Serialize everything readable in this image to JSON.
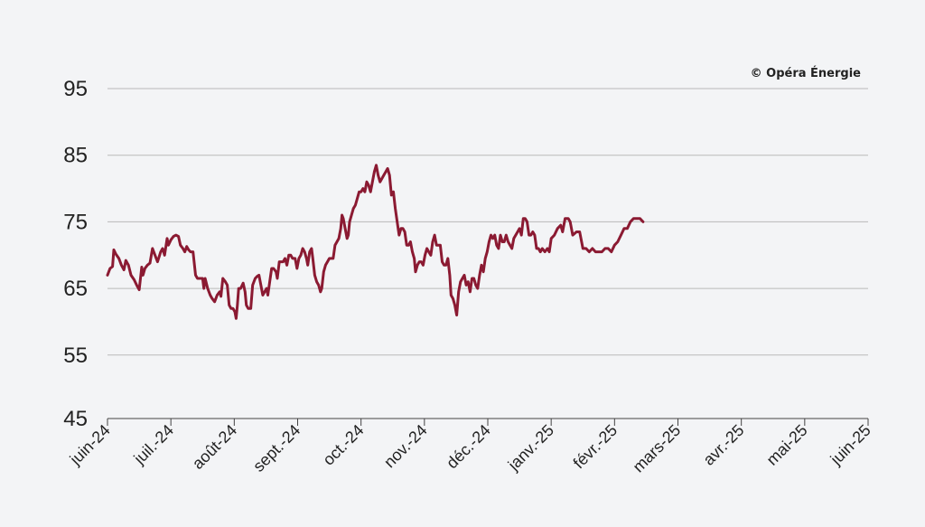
{
  "chart_data": {
    "type": "line",
    "credit": "© Opéra Énergie",
    "title": "",
    "xlabel": "",
    "ylabel": "",
    "ylim": [
      45,
      100
    ],
    "yticks": [
      95,
      85,
      75,
      65,
      55,
      45
    ],
    "grid": true,
    "x_ticks": [
      "juin-24",
      "juil.-24",
      "août-24",
      "sept.-24",
      "oct.-24",
      "nov.-24",
      "déc.-24",
      "janv.-25",
      "févr.-25",
      "mars-25",
      "avr.-25",
      "mai-25",
      "juin-25"
    ],
    "color": "#8b1a32",
    "series": [
      {
        "values": [
          [
            0,
            67.0
          ],
          [
            0.04,
            68.0
          ],
          [
            0.08,
            68.3
          ],
          [
            0.1,
            70.8
          ],
          [
            0.13,
            70.2
          ],
          [
            0.18,
            69.5
          ],
          [
            0.22,
            68.5
          ],
          [
            0.26,
            67.8
          ],
          [
            0.29,
            69.2
          ],
          [
            0.33,
            68.5
          ],
          [
            0.37,
            67.0
          ],
          [
            0.42,
            66.3
          ],
          [
            0.46,
            65.5
          ],
          [
            0.5,
            64.8
          ],
          [
            0.54,
            68.2
          ],
          [
            0.56,
            67.0
          ],
          [
            0.59,
            68.0
          ],
          [
            0.63,
            68.5
          ],
          [
            0.67,
            68.8
          ],
          [
            0.71,
            71.0
          ],
          [
            0.75,
            70.0
          ],
          [
            0.79,
            69.0
          ],
          [
            0.84,
            70.5
          ],
          [
            0.87,
            71.0
          ],
          [
            0.9,
            70.0
          ],
          [
            0.94,
            72.5
          ],
          [
            0.96,
            71.5
          ],
          [
            1.0,
            72.3
          ],
          [
            1.04,
            72.8
          ],
          [
            1.08,
            73.0
          ],
          [
            1.12,
            72.8
          ],
          [
            1.15,
            71.5
          ],
          [
            1.19,
            71.0
          ],
          [
            1.22,
            70.5
          ],
          [
            1.25,
            71.3
          ],
          [
            1.28,
            70.8
          ],
          [
            1.31,
            70.5
          ],
          [
            1.35,
            70.5
          ],
          [
            1.39,
            67.0
          ],
          [
            1.42,
            66.5
          ],
          [
            1.46,
            66.5
          ],
          [
            1.5,
            66.5
          ],
          [
            1.52,
            65.0
          ],
          [
            1.54,
            66.5
          ],
          [
            1.58,
            65.0
          ],
          [
            1.62,
            64.0
          ],
          [
            1.65,
            63.5
          ],
          [
            1.69,
            63.0
          ],
          [
            1.73,
            64.0
          ],
          [
            1.77,
            64.5
          ],
          [
            1.79,
            63.8
          ],
          [
            1.82,
            66.5
          ],
          [
            1.86,
            66.0
          ],
          [
            1.89,
            65.5
          ],
          [
            1.92,
            62.5
          ],
          [
            1.95,
            62.0
          ],
          [
            1.98,
            62.0
          ],
          [
            2.01,
            61.5
          ],
          [
            2.03,
            60.5
          ],
          [
            2.05,
            62.5
          ],
          [
            2.07,
            65.0
          ],
          [
            2.1,
            65.0
          ],
          [
            2.14,
            65.8
          ],
          [
            2.17,
            64.5
          ],
          [
            2.19,
            62.5
          ],
          [
            2.22,
            62.0
          ],
          [
            2.26,
            62.0
          ],
          [
            2.29,
            65.5
          ],
          [
            2.33,
            66.5
          ],
          [
            2.36,
            66.8
          ],
          [
            2.39,
            67.0
          ],
          [
            2.42,
            65.5
          ],
          [
            2.45,
            64.0
          ],
          [
            2.48,
            64.5
          ],
          [
            2.51,
            65.0
          ],
          [
            2.53,
            64.0
          ],
          [
            2.56,
            66.0
          ],
          [
            2.59,
            68.0
          ],
          [
            2.62,
            68.0
          ],
          [
            2.66,
            67.5
          ],
          [
            2.68,
            66.5
          ],
          [
            2.71,
            69.0
          ],
          [
            2.74,
            69.0
          ],
          [
            2.77,
            69.0
          ],
          [
            2.8,
            69.5
          ],
          [
            2.83,
            68.5
          ],
          [
            2.86,
            70.0
          ],
          [
            2.89,
            70.0
          ],
          [
            2.92,
            69.5
          ],
          [
            2.96,
            69.5
          ],
          [
            2.99,
            68.0
          ],
          [
            3.02,
            69.5
          ],
          [
            3.05,
            70.0
          ],
          [
            3.08,
            71.0
          ],
          [
            3.11,
            70.5
          ],
          [
            3.14,
            69.5
          ],
          [
            3.16,
            68.5
          ],
          [
            3.19,
            70.5
          ],
          [
            3.22,
            71.0
          ],
          [
            3.24,
            69.5
          ],
          [
            3.27,
            67.0
          ],
          [
            3.3,
            66.0
          ],
          [
            3.33,
            65.5
          ],
          [
            3.36,
            64.5
          ],
          [
            3.38,
            65.0
          ],
          [
            3.41,
            67.5
          ],
          [
            3.44,
            68.5
          ],
          [
            3.47,
            69.0
          ],
          [
            3.5,
            69.5
          ],
          [
            3.53,
            69.5
          ],
          [
            3.56,
            69.5
          ],
          [
            3.59,
            71.5
          ],
          [
            3.62,
            72.0
          ],
          [
            3.65,
            72.5
          ],
          [
            3.68,
            74.0
          ],
          [
            3.7,
            76.0
          ],
          [
            3.72,
            75.5
          ],
          [
            3.75,
            74.0
          ],
          [
            3.78,
            72.5
          ],
          [
            3.8,
            73.0
          ],
          [
            3.82,
            75.0
          ],
          [
            3.85,
            76.0
          ],
          [
            3.88,
            77.0
          ],
          [
            3.91,
            77.5
          ],
          [
            3.94,
            78.5
          ],
          [
            3.97,
            79.5
          ],
          [
            4.0,
            79.5
          ],
          [
            4.03,
            80.0
          ],
          [
            4.06,
            79.5
          ],
          [
            4.09,
            81.0
          ],
          [
            4.12,
            80.5
          ],
          [
            4.15,
            79.5
          ],
          [
            4.18,
            81.0
          ],
          [
            4.21,
            82.5
          ],
          [
            4.24,
            83.5
          ],
          [
            4.27,
            82.0
          ],
          [
            4.3,
            81.0
          ],
          [
            4.33,
            81.5
          ],
          [
            4.36,
            82.0
          ],
          [
            4.39,
            82.5
          ],
          [
            4.42,
            83.0
          ],
          [
            4.45,
            82.0
          ],
          [
            4.48,
            79.0
          ],
          [
            4.51,
            79.5
          ],
          [
            4.54,
            77.0
          ],
          [
            4.57,
            75.0
          ],
          [
            4.6,
            73.0
          ],
          [
            4.63,
            74.0
          ],
          [
            4.66,
            74.0
          ],
          [
            4.69,
            73.5
          ],
          [
            4.72,
            71.5
          ],
          [
            4.75,
            71.5
          ],
          [
            4.78,
            72.0
          ],
          [
            4.81,
            70.5
          ],
          [
            4.84,
            69.5
          ],
          [
            4.86,
            67.5
          ],
          [
            4.89,
            68.5
          ],
          [
            4.92,
            69.0
          ],
          [
            4.95,
            69.0
          ],
          [
            4.98,
            68.5
          ],
          [
            5.01,
            70.0
          ],
          [
            5.04,
            71.0
          ],
          [
            5.07,
            70.5
          ],
          [
            5.1,
            70.0
          ],
          [
            5.13,
            72.0
          ],
          [
            5.16,
            73.0
          ],
          [
            5.19,
            71.5
          ],
          [
            5.22,
            71.5
          ],
          [
            5.25,
            71.5
          ],
          [
            5.28,
            69.0
          ],
          [
            5.31,
            68.5
          ],
          [
            5.34,
            68.5
          ],
          [
            5.37,
            69.5
          ],
          [
            5.4,
            67.0
          ],
          [
            5.42,
            64.0
          ],
          [
            5.45,
            63.5
          ],
          [
            5.48,
            62.5
          ],
          [
            5.51,
            61.0
          ],
          [
            5.54,
            64.5
          ],
          [
            5.57,
            66.0
          ],
          [
            5.6,
            66.5
          ],
          [
            5.63,
            67.0
          ],
          [
            5.66,
            65.5
          ],
          [
            5.69,
            66.0
          ],
          [
            5.72,
            64.5
          ],
          [
            5.75,
            66.5
          ],
          [
            5.78,
            66.5
          ],
          [
            5.81,
            65.5
          ],
          [
            5.84,
            65.0
          ],
          [
            5.87,
            67.0
          ],
          [
            5.9,
            68.5
          ],
          [
            5.93,
            67.5
          ],
          [
            5.96,
            69.5
          ],
          [
            5.99,
            70.5
          ],
          [
            6.02,
            72.0
          ],
          [
            6.05,
            73.0
          ],
          [
            6.08,
            72.5
          ],
          [
            6.11,
            73.0
          ],
          [
            6.14,
            71.5
          ],
          [
            6.17,
            71.0
          ],
          [
            6.2,
            73.0
          ],
          [
            6.23,
            72.0
          ],
          [
            6.26,
            72.0
          ],
          [
            6.29,
            73.0
          ],
          [
            6.32,
            72.0
          ],
          [
            6.35,
            71.5
          ],
          [
            6.38,
            71.0
          ],
          [
            6.41,
            72.5
          ],
          [
            6.44,
            73.0
          ],
          [
            6.47,
            73.5
          ],
          [
            6.5,
            74.0
          ],
          [
            6.53,
            73.0
          ],
          [
            6.56,
            75.5
          ],
          [
            6.59,
            75.5
          ],
          [
            6.62,
            75.0
          ],
          [
            6.65,
            73.0
          ],
          [
            6.68,
            73.0
          ],
          [
            6.71,
            73.5
          ],
          [
            6.74,
            73.0
          ],
          [
            6.77,
            71.0
          ],
          [
            6.8,
            71.0
          ],
          [
            6.83,
            70.5
          ],
          [
            6.86,
            71.0
          ],
          [
            6.9,
            70.5
          ],
          [
            6.94,
            71.0
          ],
          [
            6.97,
            70.5
          ],
          [
            7.0,
            72.5
          ],
          [
            7.05,
            73.0
          ],
          [
            7.1,
            74.0
          ],
          [
            7.15,
            74.5
          ],
          [
            7.18,
            73.5
          ],
          [
            7.22,
            75.5
          ],
          [
            7.27,
            75.5
          ],
          [
            7.3,
            75.0
          ],
          [
            7.34,
            73.0
          ],
          [
            7.4,
            73.5
          ],
          [
            7.45,
            73.5
          ],
          [
            7.5,
            71.0
          ],
          [
            7.55,
            71.0
          ],
          [
            7.6,
            70.5
          ],
          [
            7.65,
            71.0
          ],
          [
            7.7,
            70.5
          ],
          [
            7.75,
            70.5
          ],
          [
            7.8,
            70.5
          ],
          [
            7.85,
            71.0
          ],
          [
            7.9,
            71.0
          ],
          [
            7.95,
            70.5
          ],
          [
            8.0,
            71.5
          ],
          [
            8.05,
            72.0
          ],
          [
            8.1,
            73.0
          ],
          [
            8.15,
            74.0
          ],
          [
            8.2,
            74.0
          ],
          [
            8.25,
            75.0
          ],
          [
            8.3,
            75.5
          ],
          [
            8.35,
            75.5
          ],
          [
            8.4,
            75.5
          ],
          [
            8.45,
            75.0
          ]
        ]
      }
    ]
  }
}
